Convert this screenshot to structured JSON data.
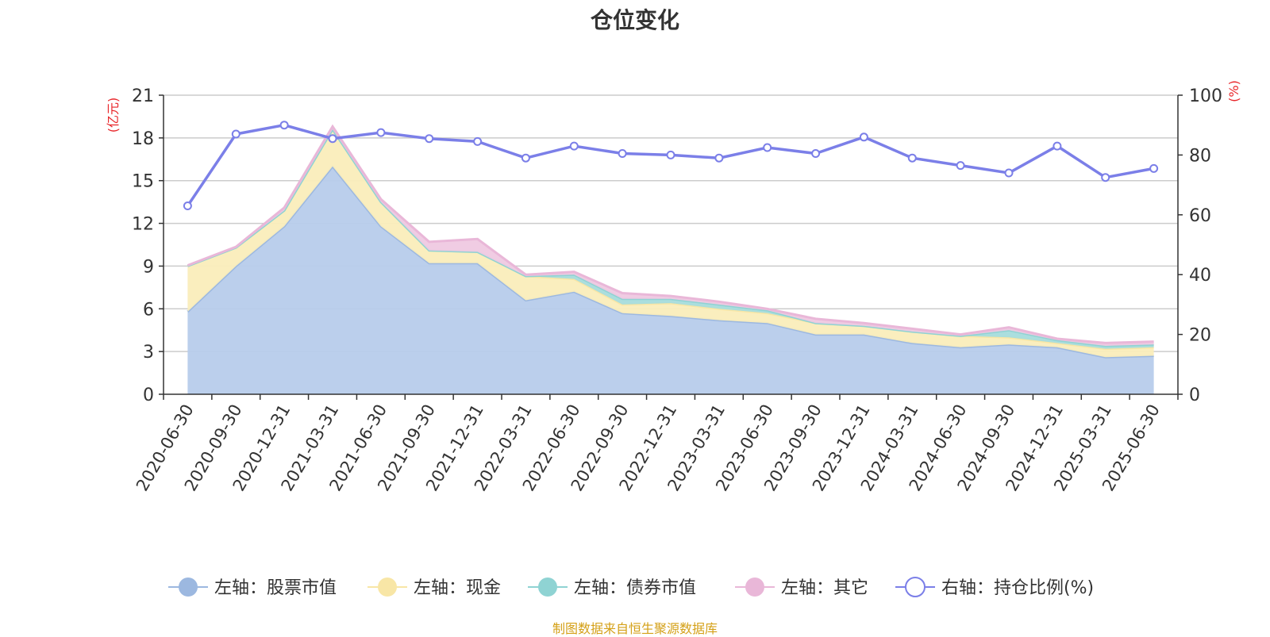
{
  "chart_data": {
    "type": "area",
    "title": "仓位变化",
    "left_unit": "(亿元)",
    "right_unit": "(%)",
    "categories": [
      "2020-06-30",
      "2020-09-30",
      "2020-12-31",
      "2021-03-31",
      "2021-06-30",
      "2021-09-30",
      "2021-12-31",
      "2022-03-31",
      "2022-06-30",
      "2022-09-30",
      "2022-12-31",
      "2023-03-31",
      "2023-06-30",
      "2023-09-30",
      "2023-12-31",
      "2024-03-31",
      "2024-06-30",
      "2024-09-30",
      "2024-12-31",
      "2025-03-31",
      "2025-06-30"
    ],
    "left_axis": {
      "min": 0,
      "max": 21,
      "ticks": [
        0,
        3,
        6,
        9,
        12,
        15,
        18,
        21
      ]
    },
    "right_axis": {
      "min": 0,
      "max": 100,
      "ticks": [
        0,
        20,
        40,
        60,
        80,
        100
      ]
    },
    "grid": true,
    "legend_position": "bottom",
    "series": [
      {
        "name": "左轴：股票市值",
        "axis": "left",
        "kind": "stacked-area",
        "color": "#9cb8e0",
        "fill": "#b7cceb",
        "values": [
          5.8,
          9.0,
          11.8,
          16.0,
          11.8,
          9.2,
          9.2,
          6.6,
          7.2,
          5.7,
          5.5,
          5.2,
          5.0,
          4.2,
          4.2,
          3.6,
          3.3,
          3.5,
          3.3,
          2.6,
          2.7
        ]
      },
      {
        "name": "左轴：现金",
        "axis": "left",
        "kind": "stacked-area",
        "color": "#f8e6a6",
        "fill": "#faedbb",
        "values": [
          3.2,
          1.3,
          1.1,
          2.6,
          1.7,
          0.9,
          0.8,
          1.7,
          0.9,
          0.6,
          0.9,
          0.8,
          0.7,
          0.8,
          0.6,
          0.8,
          0.8,
          0.5,
          0.3,
          0.6,
          0.6
        ]
      },
      {
        "name": "左轴：债券市值",
        "axis": "left",
        "kind": "stacked-area",
        "color": "#8fd3d3",
        "fill": "#a6dcdc",
        "values": [
          0,
          0,
          0,
          0,
          0,
          0,
          0,
          0,
          0.3,
          0.4,
          0.3,
          0.3,
          0.2,
          0,
          0,
          0,
          0,
          0.5,
          0.2,
          0.2,
          0.2
        ]
      },
      {
        "name": "左轴：其它",
        "axis": "left",
        "kind": "stacked-area",
        "color": "#e9b7d8",
        "fill": "#efc9e2",
        "values": [
          0.05,
          0.05,
          0.2,
          0.2,
          0.2,
          0.6,
          0.9,
          0.1,
          0.2,
          0.4,
          0.2,
          0.2,
          0.1,
          0.3,
          0.2,
          0.2,
          0.1,
          0.2,
          0.1,
          0.2,
          0.2
        ]
      },
      {
        "name": "右轴：持仓比例(%)",
        "axis": "right",
        "kind": "line",
        "color": "#7b7fe8",
        "values": [
          63,
          87,
          90,
          85.5,
          87.5,
          85.5,
          84.5,
          79,
          83,
          80.5,
          80,
          79,
          82.5,
          80.5,
          86,
          79,
          76.5,
          74,
          83,
          72.5,
          75.5
        ]
      }
    ]
  },
  "source_note": "制图数据来自恒生聚源数据库"
}
